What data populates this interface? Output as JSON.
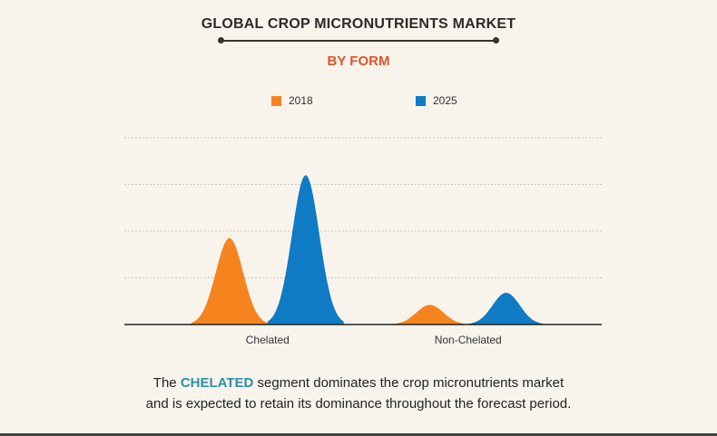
{
  "chart_data": {
    "type": "area",
    "title": "GLOBAL CROP MICRONUTRIENTS MARKET",
    "subtitle": "BY FORM",
    "categories": [
      "Chelated",
      "Non-Chelated"
    ],
    "series": [
      {
        "name": "2018",
        "color": "#f5841f",
        "values": [
          1.85,
          0.42
        ]
      },
      {
        "name": "2025",
        "color": "#0e7bc4",
        "values": [
          3.2,
          0.68
        ]
      }
    ],
    "ylim": [
      0,
      4
    ],
    "grid": true,
    "legend_position": "top-center",
    "xlabel": "",
    "ylabel": ""
  },
  "footer": {
    "prefix": "The ",
    "highlight": "CHELATED",
    "line1_rest": " segment dominates the crop micronutrients market",
    "line2": "and is expected to retain its dominance throughout the forecast period."
  },
  "colors": {
    "background": "#f8f4ec",
    "title": "#2b2b2b",
    "subtitle": "#e0532a",
    "highlight": "#2e8fa6"
  }
}
